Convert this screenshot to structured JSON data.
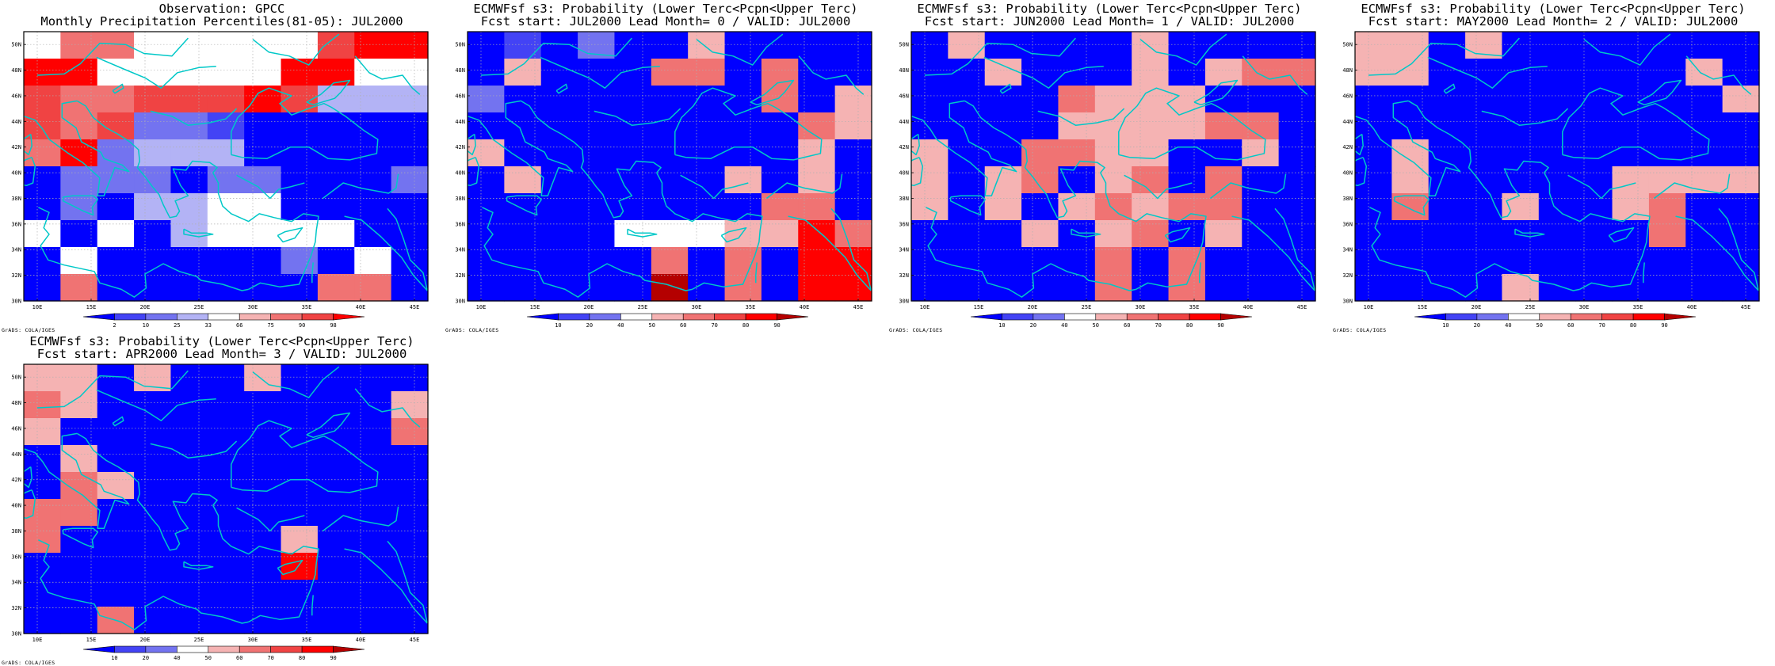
{
  "page": {
    "panels": [
      {
        "id": "obs",
        "title_line1": "Observation: GPCC",
        "title_line2": "Monthly Precipitation Percentiles(81-05): JUL2000",
        "footer": "GrADS: COLA/IGES",
        "colorbar": {
          "labels": [
            "2",
            "10",
            "25",
            "33",
            "66",
            "75",
            "90",
            "98"
          ],
          "colors": [
            "#0000ff",
            "#4343f5",
            "#7373f0",
            "#b3b3f5",
            "#ffffff",
            "#f5b3b3",
            "#f07373",
            "#f04343",
            "#ff0000"
          ]
        },
        "grid": [
          "46699999788",
          "88999998899",
          "76677787333",
          "76722100000",
          "68233300000",
          "02220220002",
          "02033440000",
          "40403444400",
          "04000002040",
          "06000000660"
        ]
      },
      {
        "id": "lead0",
        "title_line1": "ECMWFsf s3: Probability (Lower Terc<Pcpn<Upper Terc)",
        "title_line2": "Fcst start: JUL2000  Lead Month= 0 / VALID: JUL2000",
        "footer": "GrADS: COLA/IGES",
        "colorbar": {
          "labels": [
            "10",
            "20",
            "40",
            "50",
            "60",
            "70",
            "80",
            "90"
          ],
          "colors": [
            "#0000ff",
            "#4343f5",
            "#7373f0",
            "#ffffff",
            "#f5b3b3",
            "#f07373",
            "#f04343",
            "#ff0000",
            "#b40000"
          ]
        },
        "grid": [
          "01020040000",
          "04000550500",
          "20000000504",
          "00000000054",
          "40000000040",
          "04000004040",
          "00000000550",
          "00003334475",
          "00000505077",
          "00000805077"
        ]
      },
      {
        "id": "lead1",
        "title_line1": "ECMWFsf s3: Probability (Lower Terc<Pcpn<Upper Terc)",
        "title_line2": "Fcst start: JUN2000  Lead Month= 1 / VALID: JUL2000",
        "footer": "GrADS: COLA/IGES",
        "colorbar": {
          "labels": [
            "10",
            "20",
            "40",
            "50",
            "60",
            "70",
            "80",
            "90"
          ],
          "colors": [
            "#0000ff",
            "#4343f5",
            "#7373f0",
            "#ffffff",
            "#f5b3b3",
            "#f07373",
            "#f04343",
            "#ff0000",
            "#b40000"
          ]
        },
        "grid": [
          "04000040000",
          "00400040455",
          "00005444000",
          "00004444550",
          "40055440040",
          "40450450500",
          "40404545500",
          "00040450400",
          "00000505000",
          "00000505000"
        ]
      },
      {
        "id": "lead2",
        "title_line1": "ECMWFsf s3: Probability (Lower Terc<Pcpn<Upper Terc)",
        "title_line2": "Fcst start: MAY2000  Lead Month= 2 / VALID: JUL2000",
        "footer": "GrADS: COLA/IGES",
        "colorbar": {
          "labels": [
            "10",
            "20",
            "40",
            "50",
            "60",
            "70",
            "80",
            "90"
          ],
          "colors": [
            "#0000ff",
            "#4343f5",
            "#7373f0",
            "#ffffff",
            "#f5b3b3",
            "#f07373",
            "#f04343",
            "#ff0000",
            "#b40000"
          ]
        },
        "grid": [
          "44040000000",
          "44000000040",
          "00000000004",
          "00000000000",
          "04000000000",
          "04000004444",
          "05004004500",
          "00000000500",
          "00000000000",
          "00004000000"
        ]
      },
      {
        "id": "lead3",
        "title_line1": "ECMWFsf s3: Probability (Lower Terc<Pcpn<Upper Terc)",
        "title_line2": "Fcst start: APR2000  Lead Month= 3 / VALID: JUL2000",
        "footer": "GrADS: COLA/IGES",
        "colorbar": {
          "labels": [
            "10",
            "20",
            "40",
            "50",
            "60",
            "70",
            "80",
            "90"
          ],
          "colors": [
            "#0000ff",
            "#4343f5",
            "#7373f0",
            "#ffffff",
            "#f5b3b3",
            "#f07373",
            "#f04343",
            "#ff0000",
            "#b40000"
          ]
        },
        "grid": [
          "44040040000",
          "54000000004",
          "40000000005",
          "04000000000",
          "05400000000",
          "55000000000",
          "50000004000",
          "00000007000",
          "00000000000",
          "00500000000"
        ]
      }
    ],
    "axes": {
      "x_ticks": [
        "10E",
        "15E",
        "20E",
        "25E",
        "30E",
        "35E",
        "40E",
        "45E"
      ],
      "y_ticks": [
        "30N",
        "32N",
        "34N",
        "36N",
        "38N",
        "40N",
        "42N",
        "44N",
        "46N",
        "48N",
        "50N"
      ]
    },
    "colors": {
      "coast": "#00c8c8",
      "grid": "#b0b0b0",
      "frame": "#000000"
    }
  }
}
